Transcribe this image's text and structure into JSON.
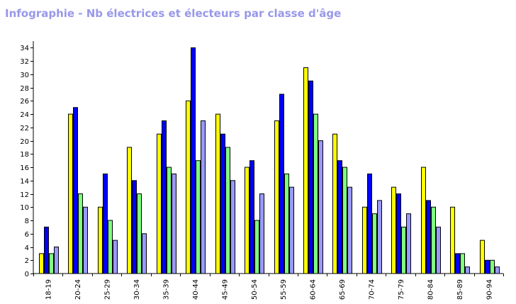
{
  "chart_data": {
    "type": "bar",
    "title": "Infographie - Nb électrices et électeurs par classe d'âge",
    "xlabel": "",
    "ylabel": "",
    "categories": [
      "18-19",
      "20-24",
      "25-29",
      "30-34",
      "35-39",
      "40-44",
      "45-49",
      "50-54",
      "55-59",
      "60-64",
      "65-69",
      "70-74",
      "75-79",
      "80-84",
      "85-89",
      "90-94"
    ],
    "series": [
      {
        "color": "#ffff00",
        "values": [
          3,
          24,
          10,
          19,
          21,
          26,
          24,
          16,
          23,
          31,
          21,
          10,
          13,
          16,
          10,
          5
        ]
      },
      {
        "color": "#0000ff",
        "values": [
          7,
          25,
          15,
          14,
          23,
          34,
          21,
          17,
          27,
          29,
          17,
          15,
          12,
          11,
          3,
          2
        ]
      },
      {
        "color": "#80ff80",
        "values": [
          3,
          12,
          8,
          12,
          16,
          17,
          19,
          8,
          15,
          24,
          16,
          9,
          7,
          10,
          3,
          2
        ]
      },
      {
        "color": "#9999ff",
        "values": [
          4,
          10,
          5,
          6,
          15,
          23,
          14,
          12,
          13,
          20,
          13,
          11,
          9,
          7,
          1,
          1
        ]
      }
    ],
    "ylim": [
      0,
      35
    ],
    "yticks": [
      0,
      2,
      4,
      6,
      8,
      10,
      12,
      14,
      16,
      18,
      20,
      22,
      24,
      26,
      28,
      30,
      32,
      34
    ],
    "grid": false,
    "legend": "none"
  }
}
